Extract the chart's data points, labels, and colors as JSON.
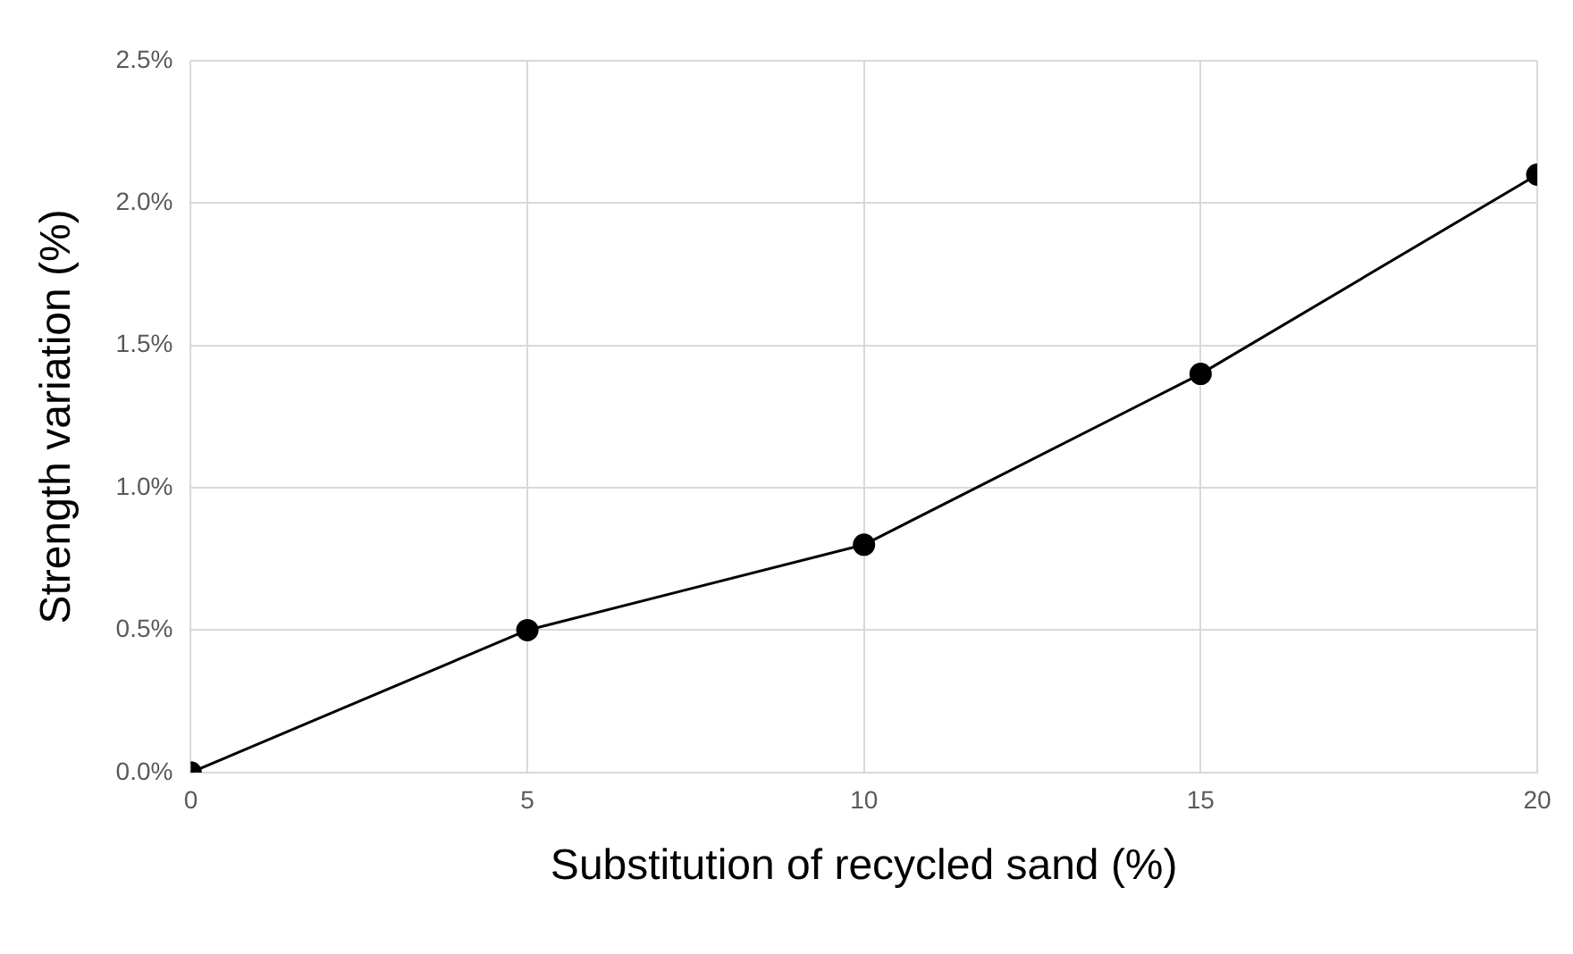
{
  "chart_data": {
    "type": "line",
    "xlabel": "Substitution of recycled sand (%)",
    "ylabel": "Strength variation (%)",
    "x": [
      0,
      5,
      10,
      15,
      20
    ],
    "series": [
      {
        "color": "#000000",
        "values": [
          0,
          0.5,
          0.8,
          1.4,
          2.1
        ]
      }
    ],
    "xlim": [
      0,
      20
    ],
    "xticks": [
      0,
      5,
      10,
      15,
      20
    ],
    "ylim": [
      0,
      2.5
    ],
    "yticks": [
      {
        "value": 0,
        "label": "0.0%"
      },
      {
        "value": 0.5,
        "label": "0.5%"
      },
      {
        "value": 1,
        "label": "1.0%"
      },
      {
        "value": 1.5,
        "label": "1.5%"
      },
      {
        "value": 2,
        "label": "2.0%"
      },
      {
        "value": 2.5,
        "label": "2.5%"
      }
    ],
    "grid": true,
    "legend": false,
    "marker": "circle",
    "line_style": "solid"
  }
}
